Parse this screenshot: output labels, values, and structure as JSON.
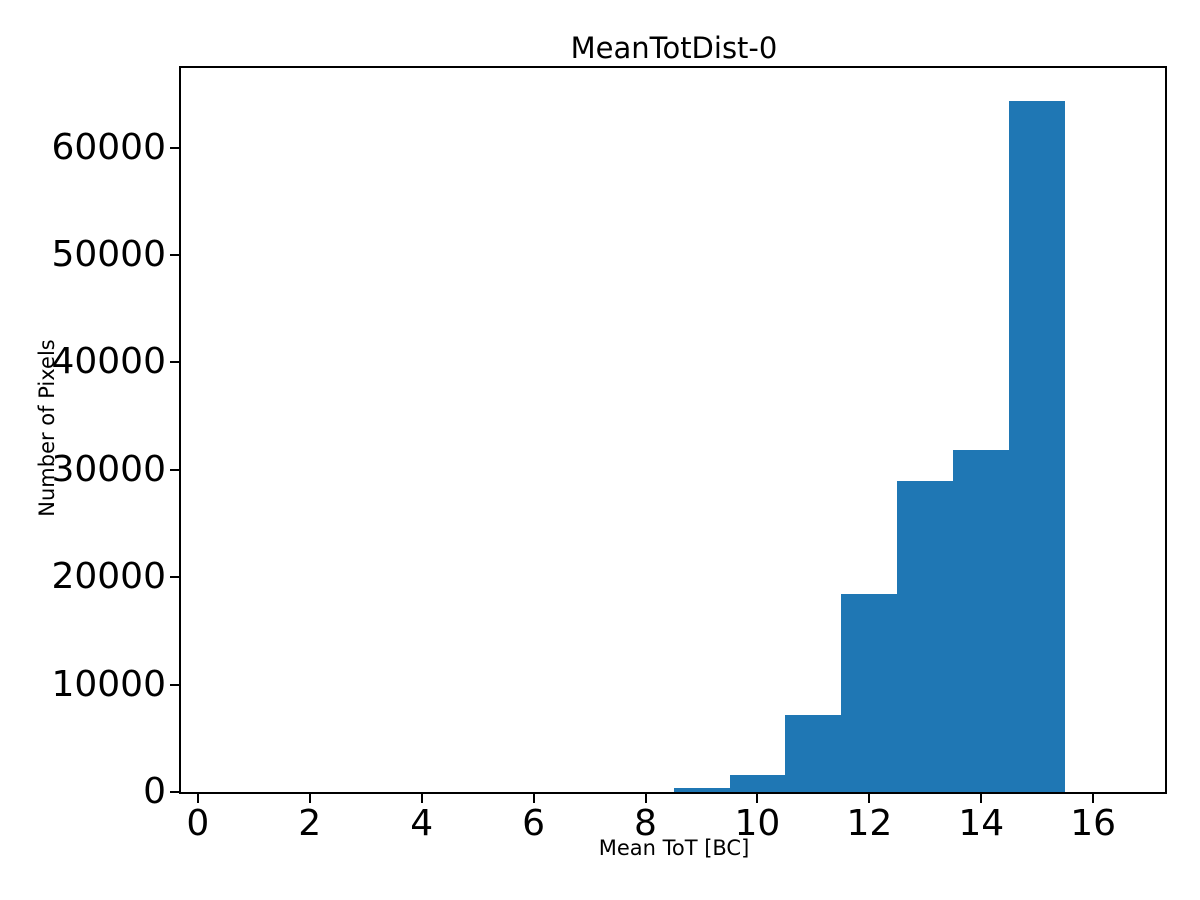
{
  "figure": {
    "background_color": "#ffffff",
    "text_color": "#000000"
  },
  "chart_data": {
    "type": "bar",
    "subtype": "histogram",
    "title": "MeanTotDist-0",
    "xlabel": "Mean ToT [BC]",
    "ylabel": "Number of Pixels",
    "bar_color": "#1f77b4",
    "grid": false,
    "legend_position": "none",
    "bin_width": 1,
    "bin_starts": [
      8.5,
      9.5,
      10.5,
      11.5,
      12.5,
      13.5,
      14.5
    ],
    "values": [
      350,
      1550,
      7200,
      18400,
      29000,
      31800,
      64300
    ],
    "xlim": [
      -0.3,
      17.3
    ],
    "ylim": [
      0,
      67500
    ],
    "x_ticks": [
      0,
      2,
      4,
      6,
      8,
      10,
      12,
      14,
      16
    ],
    "y_ticks": [
      0,
      10000,
      20000,
      30000,
      40000,
      50000,
      60000
    ]
  }
}
